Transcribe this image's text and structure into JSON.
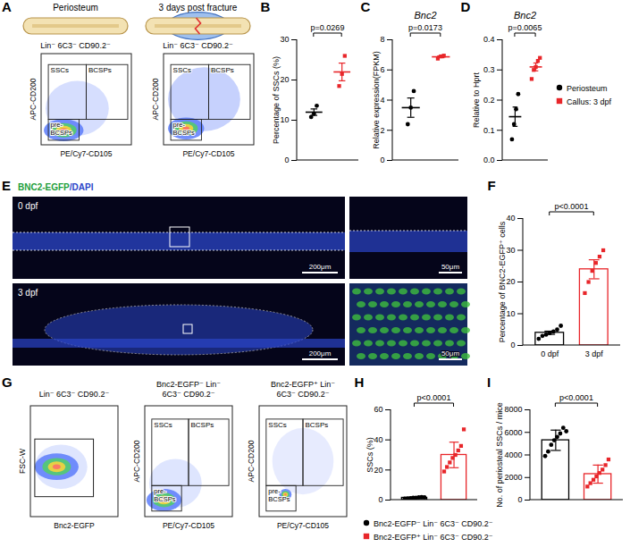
{
  "chart_data": [
    {
      "panel": "B",
      "type": "scatter",
      "y_label": "Percentage of SSCs (%)",
      "annotations": [
        "p=0.0269"
      ],
      "categories": [
        null,
        null
      ],
      "values": [
        12.0,
        22.0
      ],
      "errors": [
        0.8,
        2.2
      ],
      "points": [
        [
          10.8,
          11.6,
          13.6
        ],
        [
          18.5,
          21.5,
          26.0
        ]
      ],
      "colors": [
        "#000000",
        "#e8262a"
      ],
      "markers": [
        "circle",
        "square"
      ],
      "ylim": [
        0,
        30
      ],
      "yticks": [
        0,
        10,
        20,
        30
      ],
      "tick_labels": "y"
    },
    {
      "panel": "C",
      "type": "scatter",
      "title": "Bnc2",
      "y_label": "Relative expression(FPKM)",
      "annotations": [
        "p=0.0173"
      ],
      "categories": [
        null,
        null
      ],
      "values": [
        3.5,
        6.87
      ],
      "errors": [
        0.64,
        0.06
      ],
      "points": [
        [
          2.4,
          3.5,
          4.6
        ],
        [
          6.75,
          6.9,
          6.95
        ]
      ],
      "colors": [
        "#000000",
        "#e8262a"
      ],
      "markers": [
        "circle",
        "square"
      ],
      "ylim": [
        0,
        8
      ],
      "yticks": [
        0,
        2,
        4,
        6,
        8
      ],
      "tick_labels": "y"
    },
    {
      "panel": "D",
      "type": "scatter",
      "title": "Bnc2",
      "y_label": "Relative to Hprt",
      "annotations": [
        "p=0.0065"
      ],
      "categories": [
        null,
        null
      ],
      "values": [
        0.145,
        0.31
      ],
      "errors": [
        0.032,
        0.013
      ],
      "points": [
        [
          0.07,
          0.12,
          0.17,
          0.22
        ],
        [
          0.27,
          0.3,
          0.31,
          0.33,
          0.34
        ]
      ],
      "colors": [
        "#000000",
        "#e8262a"
      ],
      "markers": [
        "circle",
        "square"
      ],
      "ylim": [
        0,
        0.4
      ],
      "yticks": [
        {
          "value": 0,
          "label": "0.0"
        },
        {
          "value": 0.1,
          "label": "0.1"
        },
        {
          "value": 0.2,
          "label": "0.2"
        },
        {
          "value": 0.3,
          "label": "0.3"
        },
        {
          "value": 0.4,
          "label": "0.4"
        }
      ],
      "tick_labels": "y"
    },
    {
      "panel": "F",
      "type": "bar",
      "y_label": "Percentage of BNC2-EGFP⁺ cells",
      "annotations": [
        "p<0.0001"
      ],
      "categories": [
        "0 dpf",
        "3 dpf"
      ],
      "values": [
        4.0,
        24.0
      ],
      "errors": [
        0.5,
        3.0
      ],
      "points": [
        [
          2.1,
          3.0,
          3.4,
          3.9,
          4.4,
          5.0,
          6.2
        ],
        [
          16.5,
          20.0,
          23.5,
          26.0,
          28.0,
          30.0
        ]
      ],
      "colors": [
        "#000000",
        "#e8262a"
      ],
      "markers": [
        "circle",
        "square"
      ],
      "ylim": [
        0,
        40
      ],
      "yticks": [
        0,
        10,
        20,
        30,
        40
      ],
      "tick_labels": true
    },
    {
      "panel": "H",
      "type": "bar",
      "y_label": "SSCs (%)",
      "annotations": [
        "p<0.0001"
      ],
      "categories": [
        null,
        null
      ],
      "values": [
        1.5,
        30.0
      ],
      "errors": [
        0.4,
        8.5
      ],
      "points": [
        [
          0.9,
          1.1,
          1.3,
          1.5,
          1.6,
          1.8,
          2.0,
          1.8
        ],
        [
          19,
          22,
          25,
          28,
          30,
          33,
          36,
          47
        ]
      ],
      "colors": [
        "#000000",
        "#e8262a"
      ],
      "markers": [
        "circle",
        "square"
      ],
      "ylim": [
        0,
        60
      ],
      "yticks": [
        0,
        20,
        40,
        60
      ],
      "tick_labels": "y"
    },
    {
      "panel": "I",
      "type": "bar",
      "y_label": "No. of periosteal SSCs / mice",
      "annotations": [
        "p<0.0001"
      ],
      "categories": [
        null,
        null
      ],
      "values": [
        5300,
        2300
      ],
      "errors": [
        900,
        800
      ],
      "points": [
        [
          3900,
          4300,
          4900,
          5300,
          5600,
          5900,
          6400,
          6100
        ],
        [
          1200,
          1500,
          1800,
          2100,
          2400,
          2700,
          3100,
          3600
        ]
      ],
      "colors": [
        "#000000",
        "#e8262a"
      ],
      "markers": [
        "circle",
        "square"
      ],
      "ylim": [
        0,
        8000
      ],
      "yticks": [
        0,
        2000,
        4000,
        6000,
        8000
      ],
      "tick_labels": "y"
    }
  ],
  "legends": [
    {
      "panel": "D",
      "entries": [
        {
          "name": "Periosteum",
          "color": "#000000",
          "marker": "circle"
        },
        {
          "name": "Callus: 3 dpf",
          "color": "#e8262a",
          "marker": "square"
        }
      ]
    },
    {
      "panel": "H",
      "entries": [
        {
          "name": "Bnc2-EGFP⁻ Lin⁻ 6C3⁻ CD90.2⁻",
          "color": "#000000",
          "marker": "circle"
        },
        {
          "name": "Bnc2-EGFP⁺ Lin⁻ 6C3⁻ CD90.2⁻",
          "color": "#e8262a",
          "marker": "square"
        }
      ]
    }
  ],
  "panels": {
    "A": {
      "letter": "A",
      "images": [
        {
          "title": "Periosteum",
          "gate_title": "Lin⁻ 6C3⁻ CD90.2⁻"
        },
        {
          "title": "3 days post fracture",
          "gate_title": "Lin⁻ 6C3⁻ CD90.2⁻"
        }
      ],
      "x_label": "PE/Cy7-CD105",
      "y_label": "APC-CD200",
      "gates": [
        "SSCs",
        "BCSPs",
        "pre-BCSPs"
      ]
    },
    "E": {
      "letter": "E",
      "title": "BNC2-EGFP/DAPI",
      "rows": [
        "0 dpf",
        "3 dpf"
      ],
      "scale_bars": [
        "200μm",
        "50μm"
      ]
    },
    "G": {
      "letter": "G",
      "plots": [
        {
          "title": "Lin⁻ 6C3⁻ CD90.2⁻",
          "x_label": "Bnc2-EGFP",
          "y_label": "FSC-W",
          "gates": []
        },
        {
          "title": "Bnc2-EGFP⁻ Lin⁻ 6C3⁻ CD90.2⁻",
          "x_label": "PE/Cy7-CD105",
          "y_label": "APC-CD200",
          "gates": [
            "SSCs",
            "BCSPs",
            "pre-BCSPs"
          ]
        },
        {
          "title": "Bnc2-EGFP⁺ Lin⁻ 6C3⁻ CD90.2⁻",
          "x_label": "PE/Cy7-CD105",
          "y_label": "APC-CD200",
          "gates": [
            "SSCs",
            "BCSPs",
            "pre-BCSPs"
          ]
        }
      ]
    }
  }
}
